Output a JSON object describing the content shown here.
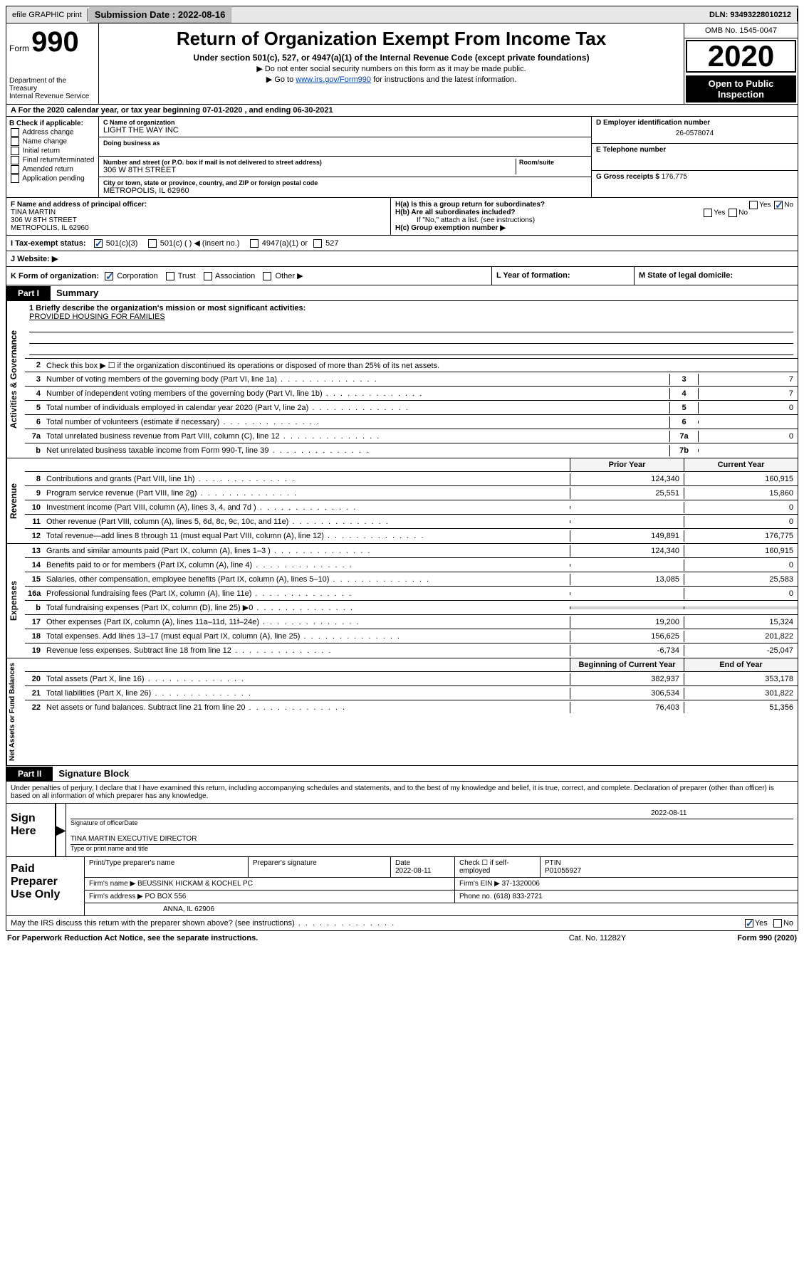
{
  "topbar": {
    "efile": "efile GRAPHIC print",
    "submission_label": "Submission Date : 2022-08-16",
    "dln": "DLN: 93493228010212"
  },
  "header": {
    "form_word": "Form",
    "form_number": "990",
    "dept": "Department of the Treasury",
    "irs": "Internal Revenue Service",
    "title": "Return of Organization Exempt From Income Tax",
    "sub1": "Under section 501(c), 527, or 4947(a)(1) of the Internal Revenue Code (except private foundations)",
    "sub2a": "▶ Do not enter social security numbers on this form as it may be made public.",
    "sub2b_pre": "▶ Go to ",
    "sub2b_link": "www.irs.gov/Form990",
    "sub2b_post": " for instructions and the latest information.",
    "omb": "OMB No. 1545-0047",
    "year": "2020",
    "open1": "Open to Public",
    "open2": "Inspection"
  },
  "row_a": "A For the 2020 calendar year, or tax year beginning 07-01-2020    , and ending 06-30-2021",
  "section_b": {
    "label": "B Check if applicable:",
    "items": [
      "Address change",
      "Name change",
      "Initial return",
      "Final return/terminated",
      "Amended return",
      "Application pending"
    ]
  },
  "section_c": {
    "name_label": "C Name of organization",
    "name_val": "LIGHT THE WAY INC",
    "dba_label": "Doing business as",
    "street_label": "Number and street (or P.O. box if mail is not delivered to street address)",
    "room_label": "Room/suite",
    "street_val": "306 W 8TH STREET",
    "city_label": "City or town, state or province, country, and ZIP or foreign postal code",
    "city_val": "METROPOLIS, IL  62960"
  },
  "section_d": {
    "label": "D Employer identification number",
    "val": "26-0578074"
  },
  "section_e": {
    "label": "E Telephone number",
    "val": ""
  },
  "section_g": {
    "label": "G Gross receipts $",
    "val": "176,775"
  },
  "section_f": {
    "label": "F  Name and address of principal officer:",
    "name": "TINA MARTIN",
    "addr1": "306 W 8TH STREET",
    "addr2": "METROPOLIS, IL  62960"
  },
  "section_h": {
    "ha": "H(a)  Is this a group return for subordinates?",
    "hb": "H(b)  Are all subordinates included?",
    "hb_note": "If \"No,\" attach a list. (see instructions)",
    "hc": "H(c)  Group exemption number ▶",
    "yes": "Yes",
    "no": "No"
  },
  "section_i": {
    "label": "I   Tax-exempt status:",
    "opt1": "501(c)(3)",
    "opt2": "501(c) (  ) ◀ (insert no.)",
    "opt3": "4947(a)(1) or",
    "opt4": "527"
  },
  "section_j": {
    "label": "J   Website: ▶"
  },
  "section_k": {
    "label": "K Form of organization:",
    "opts": [
      "Corporation",
      "Trust",
      "Association",
      "Other ▶"
    ]
  },
  "section_l": "L Year of formation:",
  "section_m": "M State of legal domicile:",
  "part1": {
    "tab": "Part I",
    "title": "Summary",
    "vlabels": [
      "Activities & Governance",
      "Revenue",
      "Expenses",
      "Net Assets or Fund Balances"
    ],
    "line1_label": "1  Briefly describe the organization's mission or most significant activities:",
    "line1_val": "PROVIDED HOUSING FOR FAMILIES",
    "line2": "Check this box ▶ ☐  if the organization discontinued its operations or disposed of more than 25% of its net assets.",
    "lines_ag": [
      {
        "n": "3",
        "d": "Number of voting members of the governing body (Part VI, line 1a)",
        "b": "3",
        "v": "7"
      },
      {
        "n": "4",
        "d": "Number of independent voting members of the governing body (Part VI, line 1b)",
        "b": "4",
        "v": "7"
      },
      {
        "n": "5",
        "d": "Total number of individuals employed in calendar year 2020 (Part V, line 2a)",
        "b": "5",
        "v": "0"
      },
      {
        "n": "6",
        "d": "Total number of volunteers (estimate if necessary)",
        "b": "6",
        "v": ""
      },
      {
        "n": "7a",
        "d": "Total unrelated business revenue from Part VIII, column (C), line 12",
        "b": "7a",
        "v": "0"
      },
      {
        "n": "b",
        "d": "Net unrelated business taxable income from Form 990-T, line 39",
        "b": "7b",
        "v": ""
      }
    ],
    "col_prior": "Prior Year",
    "col_current": "Current Year",
    "lines_rev": [
      {
        "n": "8",
        "d": "Contributions and grants (Part VIII, line 1h)",
        "p": "124,340",
        "c": "160,915"
      },
      {
        "n": "9",
        "d": "Program service revenue (Part VIII, line 2g)",
        "p": "25,551",
        "c": "15,860"
      },
      {
        "n": "10",
        "d": "Investment income (Part VIII, column (A), lines 3, 4, and 7d )",
        "p": "",
        "c": "0"
      },
      {
        "n": "11",
        "d": "Other revenue (Part VIII, column (A), lines 5, 6d, 8c, 9c, 10c, and 11e)",
        "p": "",
        "c": "0"
      },
      {
        "n": "12",
        "d": "Total revenue—add lines 8 through 11 (must equal Part VIII, column (A), line 12)",
        "p": "149,891",
        "c": "176,775"
      }
    ],
    "lines_exp": [
      {
        "n": "13",
        "d": "Grants and similar amounts paid (Part IX, column (A), lines 1–3 )",
        "p": "124,340",
        "c": "160,915"
      },
      {
        "n": "14",
        "d": "Benefits paid to or for members (Part IX, column (A), line 4)",
        "p": "",
        "c": "0"
      },
      {
        "n": "15",
        "d": "Salaries, other compensation, employee benefits (Part IX, column (A), lines 5–10)",
        "p": "13,085",
        "c": "25,583"
      },
      {
        "n": "16a",
        "d": "Professional fundraising fees (Part IX, column (A), line 11e)",
        "p": "",
        "c": "0"
      },
      {
        "n": "b",
        "d": "Total fundraising expenses (Part IX, column (D), line 25) ▶0",
        "p": "__grey__",
        "c": "__grey__"
      },
      {
        "n": "17",
        "d": "Other expenses (Part IX, column (A), lines 11a–11d, 11f–24e)",
        "p": "19,200",
        "c": "15,324"
      },
      {
        "n": "18",
        "d": "Total expenses. Add lines 13–17 (must equal Part IX, column (A), line 25)",
        "p": "156,625",
        "c": "201,822"
      },
      {
        "n": "19",
        "d": "Revenue less expenses. Subtract line 18 from line 12",
        "p": "-6,734",
        "c": "-25,047"
      }
    ],
    "col_begin": "Beginning of Current Year",
    "col_end": "End of Year",
    "lines_net": [
      {
        "n": "20",
        "d": "Total assets (Part X, line 16)",
        "p": "382,937",
        "c": "353,178"
      },
      {
        "n": "21",
        "d": "Total liabilities (Part X, line 26)",
        "p": "306,534",
        "c": "301,822"
      },
      {
        "n": "22",
        "d": "Net assets or fund balances. Subtract line 21 from line 20",
        "p": "76,403",
        "c": "51,356"
      }
    ]
  },
  "part2": {
    "tab": "Part II",
    "title": "Signature Block",
    "declaration": "Under penalties of perjury, I declare that I have examined this return, including accompanying schedules and statements, and to the best of my knowledge and belief, it is true, correct, and complete. Declaration of preparer (other than officer) is based on all information of which preparer has any knowledge.",
    "sign_here": "Sign Here",
    "sig_officer": "Signature of officer",
    "sig_date": "2022-08-11",
    "date_label": "Date",
    "officer_name": "TINA MARTIN  EXECUTIVE DIRECTOR",
    "type_name": "Type or print name and title",
    "paid": "Paid Preparer Use Only",
    "h_print": "Print/Type preparer's name",
    "h_sig": "Preparer's signature",
    "h_date": "Date",
    "h_date_val": "2022-08-11",
    "h_check": "Check ☐ if self-employed",
    "h_ptin": "PTIN",
    "ptin_val": "P01055927",
    "firm_name_l": "Firm's name      ▶",
    "firm_name_v": "BEUSSINK HICKAM & KOCHEL PC",
    "firm_ein_l": "Firm's EIN ▶",
    "firm_ein_v": "37-1320006",
    "firm_addr_l": "Firm's address ▶",
    "firm_addr_v1": "PO BOX 556",
    "firm_addr_v2": "ANNA, IL  62906",
    "phone_l": "Phone no.",
    "phone_v": "(618) 833-2721"
  },
  "discuss": {
    "text": "May the IRS discuss this return with the preparer shown above? (see instructions)",
    "yes": "Yes",
    "no": "No"
  },
  "footer": {
    "left": "For Paperwork Reduction Act Notice, see the separate instructions.",
    "mid": "Cat. No. 11282Y",
    "right": "Form 990 (2020)"
  }
}
